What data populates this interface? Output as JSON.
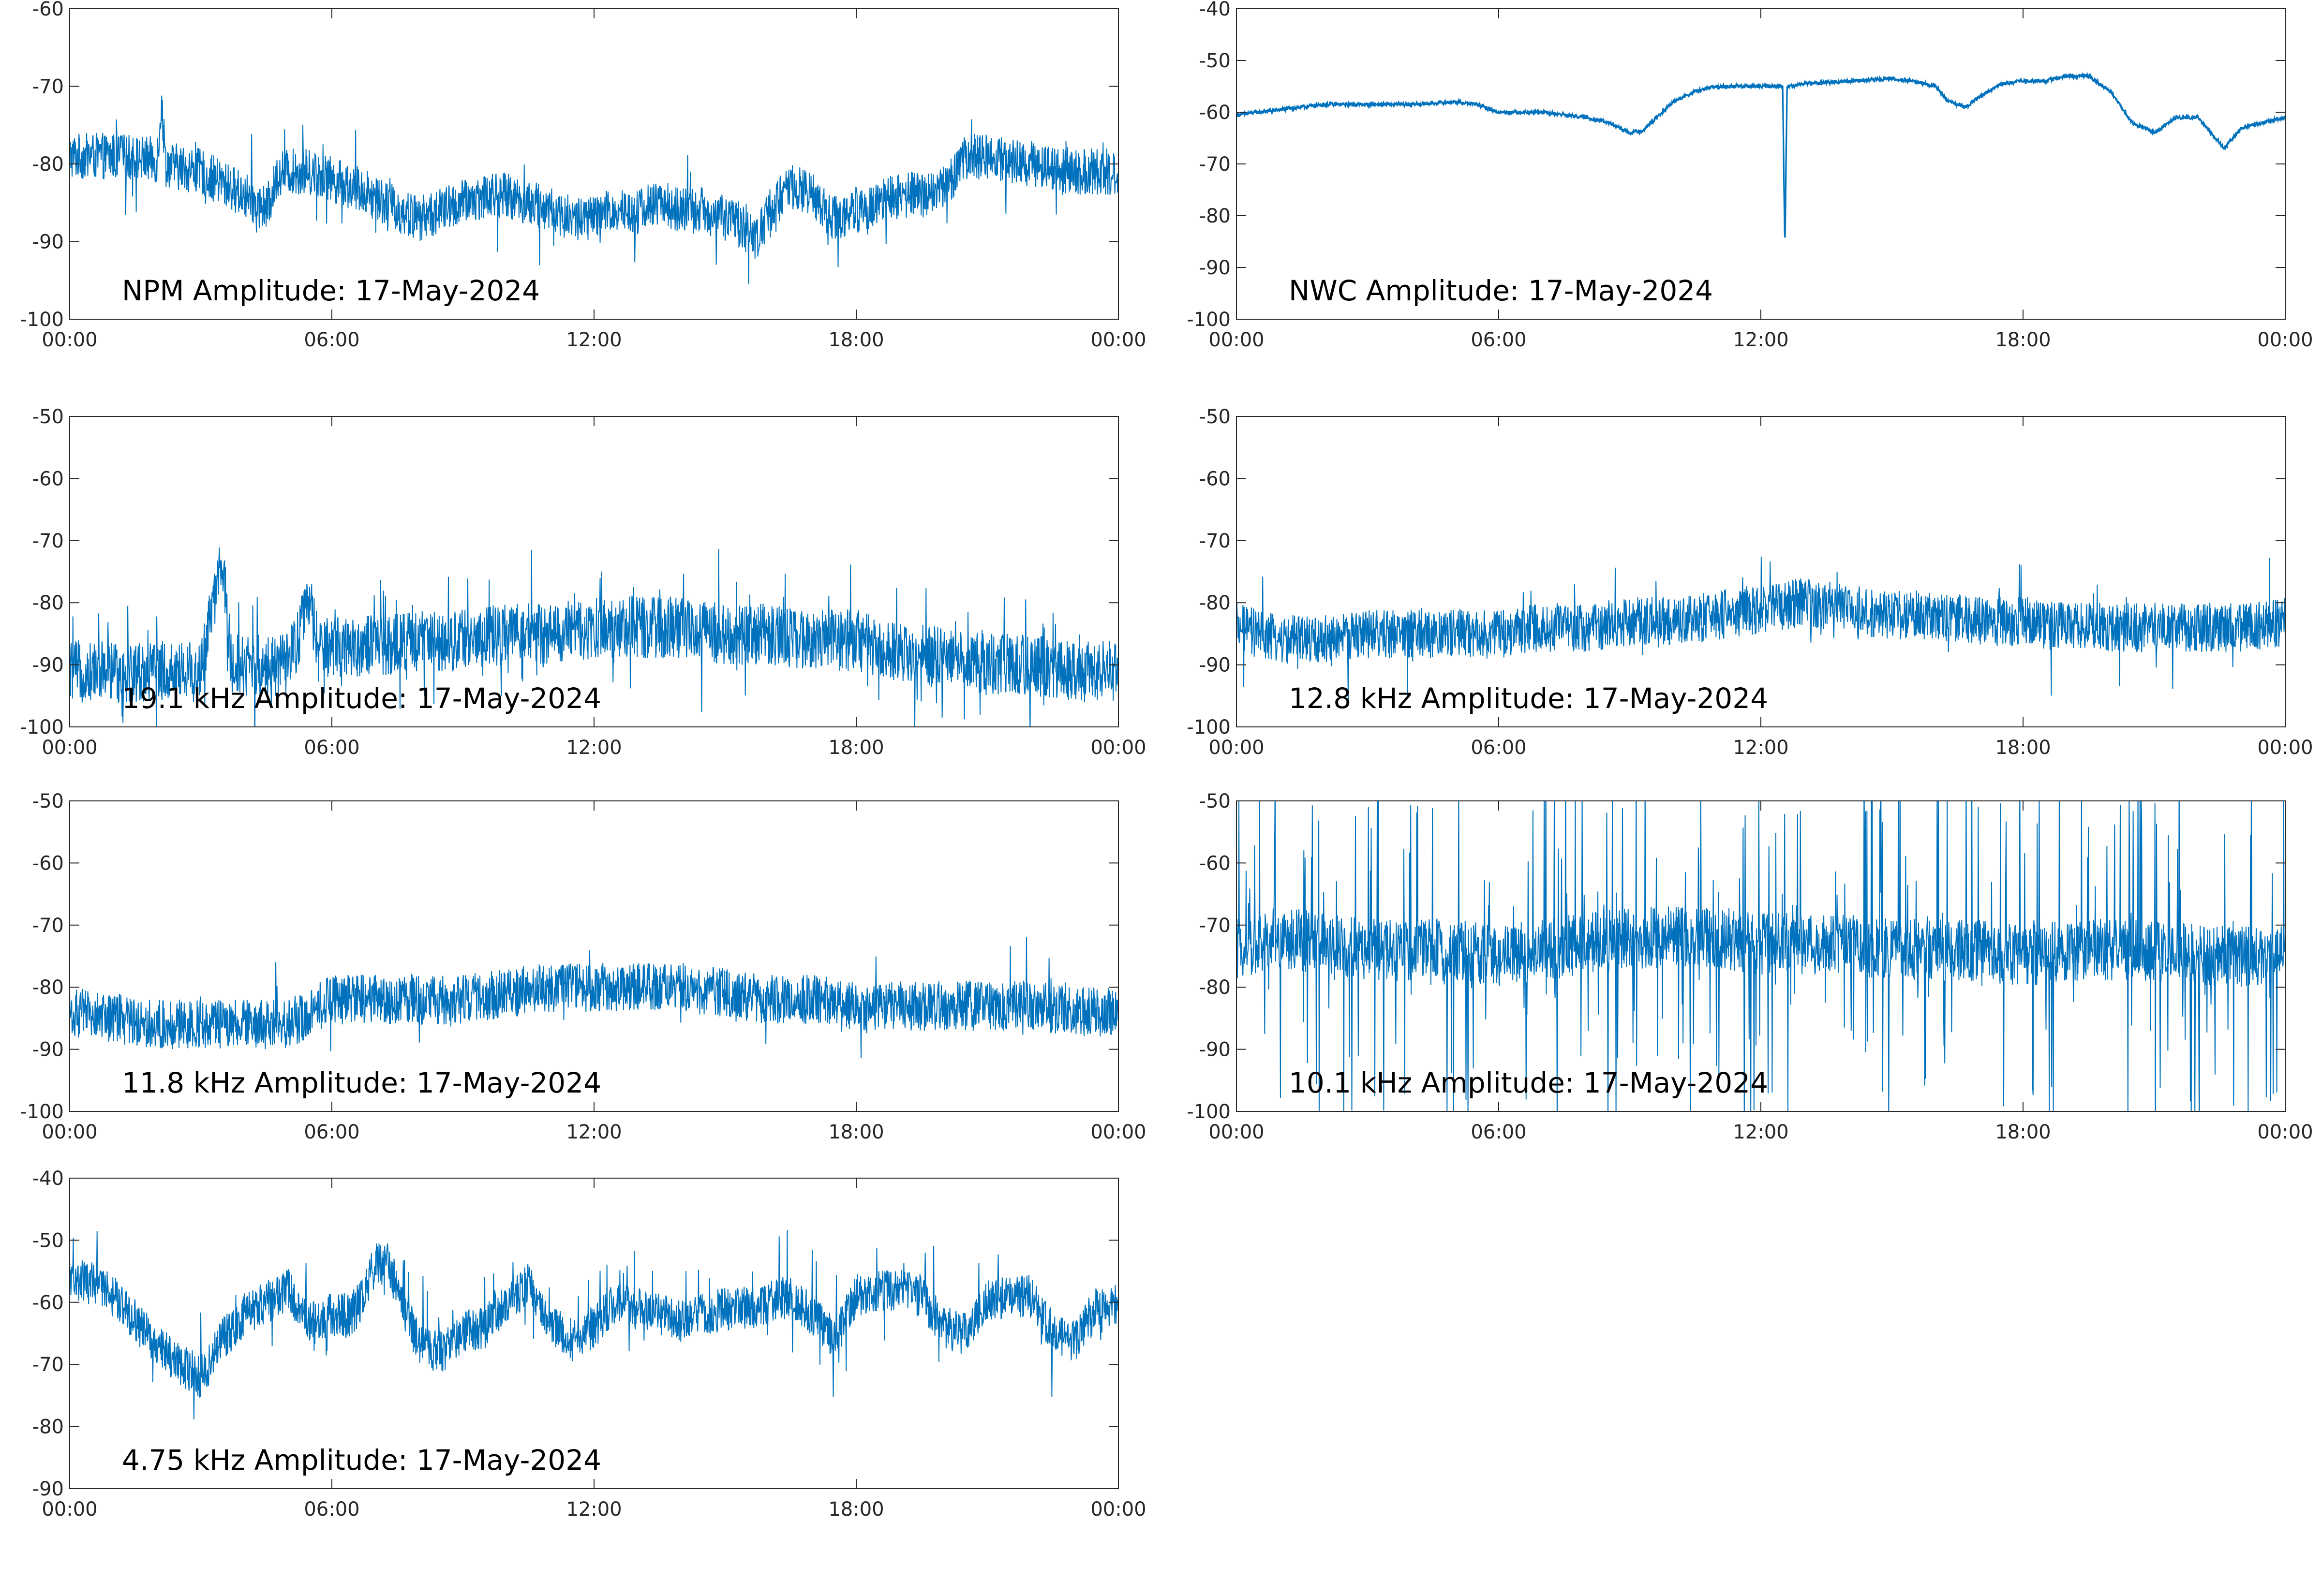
{
  "colors": {
    "line": "#0072BD",
    "axes": "#262626",
    "background": "#ffffff"
  },
  "chart_data": [
    {
      "type": "line",
      "title": "NPM Amplitude: 17-May-2024",
      "xlabel": "",
      "ylabel": "",
      "xlim": [
        "00:00",
        "00:00"
      ],
      "xticks": [
        "00:00",
        "06:00",
        "12:00",
        "18:00",
        "00:00"
      ],
      "ylim": [
        -100,
        -60
      ],
      "yticks": [
        -60,
        -70,
        -80,
        -90,
        -100
      ],
      "grid": false,
      "series": [
        {
          "x": [
            0,
            1,
            2,
            2.1,
            2.2,
            3,
            4,
            4.5,
            4.8,
            5,
            5.5,
            6,
            6.5,
            7,
            7.5,
            8,
            8.5,
            9,
            9.5,
            10,
            10.5,
            11,
            11.5,
            12,
            12.5,
            13,
            13.5,
            14,
            14.5,
            15,
            15.5,
            15.7,
            16,
            16.5,
            17,
            17.5,
            18,
            18.5,
            19,
            19.5,
            20,
            20.3,
            20.5,
            21,
            22,
            23,
            24
          ],
          "values": [
            -79,
            -79,
            -79.5,
            -72,
            -80,
            -81,
            -84,
            -86,
            -81,
            -81,
            -81,
            -82,
            -83,
            -84,
            -86,
            -87,
            -86,
            -85,
            -84,
            -84,
            -85,
            -86,
            -87,
            -87,
            -86,
            -86,
            -85,
            -86,
            -86,
            -87,
            -88,
            -90,
            -86,
            -83,
            -84,
            -87,
            -86,
            -85,
            -84,
            -84,
            -83,
            -81,
            -79,
            -79,
            -80,
            -81,
            -81
          ]
        }
      ]
    },
    {
      "type": "line",
      "title": "NWC Amplitude: 17-May-2024",
      "xlabel": "",
      "ylabel": "",
      "xlim": [
        "00:00",
        "00:00"
      ],
      "xticks": [
        "00:00",
        "06:00",
        "12:00",
        "18:00",
        "00:00"
      ],
      "ylim": [
        -100,
        -40
      ],
      "yticks": [
        -40,
        -50,
        -60,
        -70,
        -80,
        -90,
        -100
      ],
      "grid": false,
      "series": [
        {
          "x": [
            0,
            1,
            2,
            3,
            4,
            5,
            5.5,
            6,
            7,
            7.5,
            8,
            8.5,
            9,
            9.3,
            10,
            10.5,
            11,
            12,
            12.5,
            12.55,
            12.6,
            13,
            14,
            15,
            15.5,
            16,
            16.3,
            16.7,
            17,
            17.5,
            18,
            18.5,
            19,
            19.5,
            20,
            20.5,
            21,
            21.5,
            22,
            22.3,
            22.6,
            23,
            24
          ],
          "values": [
            -60.5,
            -59.5,
            -58.5,
            -58.5,
            -58.5,
            -58,
            -58.5,
            -60,
            -60,
            -60.5,
            -61,
            -62,
            -64,
            -63.5,
            -58,
            -56,
            -55,
            -55,
            -55,
            -87,
            -55,
            -54.5,
            -54,
            -53.5,
            -54,
            -55,
            -58,
            -59,
            -57,
            -54.5,
            -54,
            -54,
            -53,
            -53,
            -56,
            -62,
            -64,
            -61,
            -61,
            -64,
            -67,
            -63,
            -61
          ]
        }
      ]
    },
    {
      "type": "line",
      "title": "19.1 kHz Amplitude: 17-May-2024",
      "xlabel": "",
      "ylabel": "",
      "xlim": [
        "00:00",
        "00:00"
      ],
      "xticks": [
        "00:00",
        "06:00",
        "12:00",
        "18:00",
        "00:00"
      ],
      "ylim": [
        -100,
        -50
      ],
      "yticks": [
        -50,
        -60,
        -70,
        -80,
        -90,
        -100
      ],
      "grid": false,
      "series": [
        {
          "x": [
            0,
            1,
            2,
            3,
            3.4,
            3.5,
            3.7,
            4,
            5,
            5.5,
            5.7,
            6,
            7,
            8,
            9,
            10,
            11,
            12,
            13,
            14,
            15,
            16,
            17,
            18,
            19,
            20,
            21,
            22,
            23,
            24
          ],
          "values": [
            -91,
            -91,
            -91,
            -91,
            -76,
            -74,
            -90,
            -90,
            -90,
            -80,
            -88,
            -87,
            -87,
            -86,
            -86,
            -85,
            -85,
            -84,
            -84,
            -84,
            -85,
            -85,
            -86,
            -86,
            -88,
            -89,
            -90,
            -90,
            -91,
            -91
          ]
        }
      ]
    },
    {
      "type": "line",
      "title": "12.8 kHz Amplitude: 17-May-2024",
      "xlabel": "",
      "ylabel": "",
      "xlim": [
        "00:00",
        "00:00"
      ],
      "xticks": [
        "00:00",
        "06:00",
        "12:00",
        "18:00",
        "00:00"
      ],
      "ylim": [
        -100,
        -50
      ],
      "yticks": [
        -50,
        -60,
        -70,
        -80,
        -90,
        -100
      ],
      "grid": false,
      "series": [
        {
          "x": [
            0,
            1,
            2,
            3,
            4,
            5,
            6,
            7,
            8,
            9,
            10,
            11,
            12,
            13,
            14,
            15,
            16,
            17,
            18,
            19,
            20,
            21,
            22,
            23,
            24
          ],
          "values": [
            -84,
            -86,
            -86,
            -85,
            -85,
            -85,
            -85,
            -84,
            -84,
            -83,
            -83,
            -82,
            -81,
            -80,
            -81,
            -82,
            -82,
            -83,
            -83,
            -84,
            -84,
            -84,
            -84,
            -84,
            -83
          ]
        }
      ]
    },
    {
      "type": "line",
      "title": "11.8 kHz Amplitude: 17-May-2024",
      "xlabel": "",
      "ylabel": "",
      "xlim": [
        "00:00",
        "00:00"
      ],
      "xticks": [
        "00:00",
        "06:00",
        "12:00",
        "18:00",
        "00:00"
      ],
      "ylim": [
        -100,
        -50
      ],
      "yticks": [
        -50,
        -60,
        -70,
        -80,
        -90,
        -100
      ],
      "grid": false,
      "series": [
        {
          "x": [
            0,
            1,
            2,
            3,
            4,
            5,
            5.5,
            6,
            7,
            8,
            9,
            10,
            11,
            12,
            13,
            14,
            15,
            16,
            17,
            18,
            19,
            20,
            21,
            22,
            23,
            24
          ],
          "values": [
            -84,
            -85,
            -86,
            -86,
            -86,
            -86,
            -84,
            -82,
            -82,
            -82,
            -82,
            -81,
            -80,
            -80,
            -80,
            -80,
            -81,
            -82,
            -82,
            -83,
            -83,
            -83,
            -83,
            -83,
            -84,
            -84
          ]
        }
      ]
    },
    {
      "type": "line",
      "title": "10.1 kHz Amplitude: 17-May-2024",
      "xlabel": "",
      "ylabel": "",
      "xlim": [
        "00:00",
        "00:00"
      ],
      "xticks": [
        "00:00",
        "06:00",
        "12:00",
        "18:00",
        "00:00"
      ],
      "ylim": [
        -100,
        -50
      ],
      "yticks": [
        -50,
        -60,
        -70,
        -80,
        -90,
        -100
      ],
      "grid": false,
      "series": [
        {
          "x": [
            0,
            1,
            2,
            3,
            4,
            5,
            6,
            7,
            8,
            9,
            10,
            11,
            12,
            13,
            14,
            15,
            16,
            17,
            18,
            19,
            20,
            21,
            22,
            23,
            24
          ],
          "values": [
            -74,
            -72,
            -73,
            -74,
            -74,
            -74,
            -75,
            -74,
            -73,
            -72,
            -72,
            -72,
            -73,
            -73,
            -73,
            -74,
            -74,
            -74,
            -75,
            -74,
            -74,
            -74,
            -75,
            -75,
            -75
          ]
        }
      ]
    },
    {
      "type": "line",
      "title": "4.75 kHz Amplitude: 17-May-2024",
      "xlabel": "",
      "ylabel": "",
      "xlim": [
        "00:00",
        "00:00"
      ],
      "xticks": [
        "00:00",
        "06:00",
        "12:00",
        "18:00",
        "00:00"
      ],
      "ylim": [
        -90,
        -40
      ],
      "yticks": [
        -40,
        -50,
        -60,
        -70,
        -80,
        -90
      ],
      "grid": false,
      "series": [
        {
          "x": [
            0,
            0.5,
            1,
            1.5,
            2,
            2.5,
            3,
            3.5,
            4,
            4.5,
            5,
            5.5,
            6,
            6.5,
            7,
            7.3,
            7.5,
            8,
            8.5,
            9,
            9.5,
            10,
            10.5,
            11,
            11.5,
            12,
            12.5,
            13,
            13.5,
            14,
            14.5,
            15,
            15.5,
            16,
            16.5,
            17,
            17.5,
            18,
            18.5,
            19,
            19.5,
            20,
            20.5,
            21,
            21.5,
            22,
            22.5,
            23,
            23.5,
            24
          ],
          "values": [
            -56,
            -57,
            -59,
            -63,
            -67,
            -70,
            -72,
            -66,
            -62,
            -60,
            -58,
            -63,
            -62,
            -62,
            -54,
            -54,
            -58,
            -67,
            -68,
            -65,
            -64,
            -60,
            -57,
            -64,
            -66,
            -64,
            -60,
            -61,
            -62,
            -63,
            -62,
            -61,
            -61,
            -60,
            -59,
            -62,
            -66,
            -59,
            -58,
            -58,
            -59,
            -64,
            -65,
            -60,
            -59,
            -59,
            -65,
            -66,
            -61,
            -60
          ]
        }
      ]
    }
  ]
}
